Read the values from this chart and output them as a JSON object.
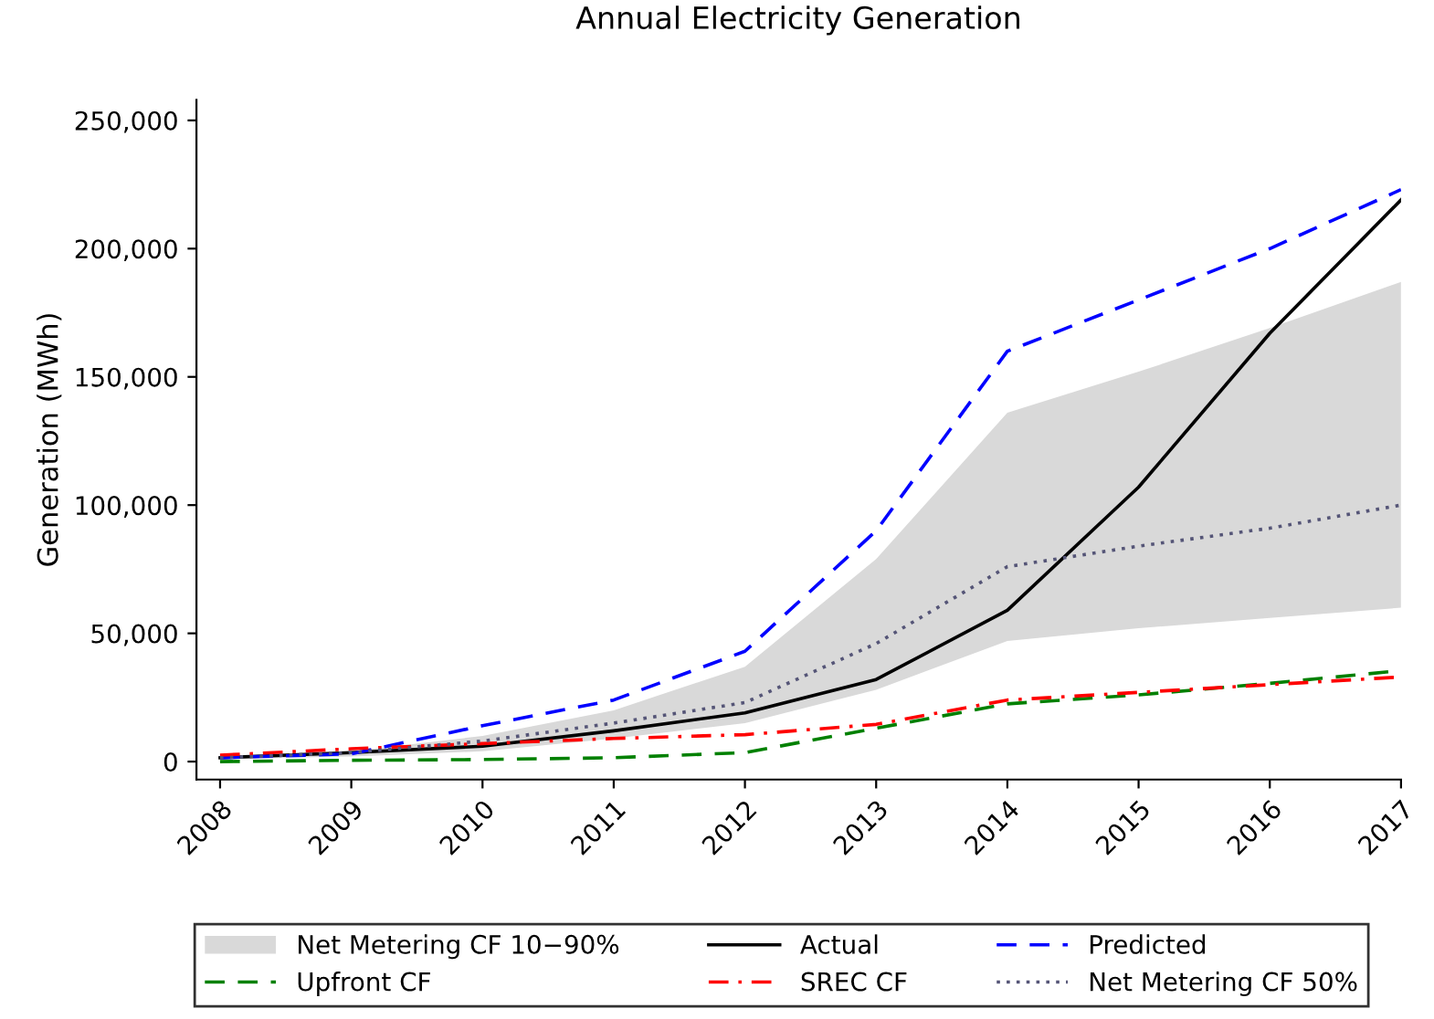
{
  "chart_data": {
    "type": "line",
    "title": "Annual Electricity Generation",
    "ylabel": "Generation (MWh)",
    "x": [
      2008,
      2009,
      2010,
      2011,
      2012,
      2013,
      2014,
      2015,
      2016,
      2017
    ],
    "xlim": [
      2007.82,
      2017
    ],
    "xticks": [
      2008,
      2009,
      2010,
      2011,
      2012,
      2013,
      2014,
      2015,
      2016,
      2017
    ],
    "ylim": [
      -7000,
      258000
    ],
    "yticks": [
      {
        "value": 0,
        "label": "0"
      },
      {
        "value": 50000,
        "label": "50,000"
      },
      {
        "value": 100000,
        "label": "100,000"
      },
      {
        "value": 150000,
        "label": "150,000"
      },
      {
        "value": 200000,
        "label": "200,000"
      },
      {
        "value": 250000,
        "label": "250,000"
      }
    ],
    "grid": false,
    "legend": "bottom",
    "marker": "none",
    "series": [
      {
        "name": "Net Metering CF 10−90%",
        "type": "area",
        "color": "#d9d9d9",
        "values": [
          null,
          null,
          null,
          null,
          null,
          null,
          null,
          null,
          null,
          null
        ],
        "lower": [
          1000,
          2000,
          4000,
          9000,
          15000,
          28000,
          47000,
          52000,
          56000,
          60000
        ],
        "upper": [
          2000,
          4000,
          10000,
          20000,
          37000,
          79000,
          136000,
          152000,
          169000,
          187000
        ]
      },
      {
        "name": "Actual",
        "color": "#000000",
        "line_style": "solid",
        "values": [
          1500,
          3500,
          6000,
          12000,
          19000,
          32000,
          59000,
          107000,
          167000,
          219000
        ]
      },
      {
        "name": "Predicted",
        "color": "#0000ff",
        "line_style": "dashed",
        "values": [
          1500,
          3000,
          14000,
          24000,
          43000,
          90000,
          160000,
          180000,
          200000,
          223000
        ]
      },
      {
        "name": "Upfront CF",
        "color": "#008000",
        "line_style": "dashed",
        "values": [
          0,
          500,
          800,
          1500,
          3500,
          13000,
          22500,
          26000,
          30500,
          35500
        ]
      },
      {
        "name": "SREC CF",
        "color": "#ff0000",
        "line_style": "dashdot",
        "values": [
          2500,
          5000,
          7000,
          9000,
          10500,
          14500,
          24000,
          27000,
          30000,
          33000
        ]
      },
      {
        "name": "Net Metering CF 50%",
        "color": "#555577",
        "line_style": "dotted",
        "values": [
          1500,
          3500,
          8000,
          15000,
          23000,
          46000,
          76000,
          84000,
          91000,
          100000
        ]
      }
    ]
  }
}
